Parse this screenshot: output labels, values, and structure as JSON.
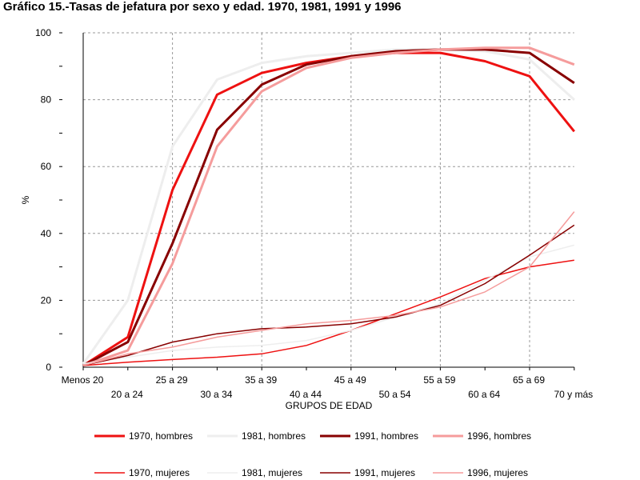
{
  "chart_data": {
    "type": "line",
    "title": "Gráfico 15.-Tasas de jefatura por sexo y edad. 1970, 1981, 1991 y 1996",
    "xlabel": "GRUPOS DE EDAD",
    "ylabel": "%",
    "ylim": [
      0,
      100
    ],
    "yticks": [
      0,
      20,
      40,
      60,
      80,
      100
    ],
    "grid": true,
    "legend_position": "bottom",
    "categories": [
      "Menos 20",
      "20 a 24",
      "25 a 29",
      "30 a 34",
      "35 a 39",
      "40 a 44",
      "45 a 49",
      "50 a 54",
      "55 a 59",
      "60 a 64",
      "65 a 69",
      "70 y más"
    ],
    "series": [
      {
        "name": "1970, hombres",
        "color": "#ee1111",
        "width": 3,
        "values": [
          0.5,
          9,
          53,
          81.5,
          88,
          91,
          93,
          94,
          94,
          91.5,
          87,
          70.5
        ]
      },
      {
        "name": "1981, hombres",
        "color": "#eeeeee",
        "width": 3,
        "values": [
          1,
          20,
          66,
          86,
          91,
          93,
          94,
          95,
          95,
          94.5,
          92,
          80
        ]
      },
      {
        "name": "1991, hombres",
        "color": "#880000",
        "width": 3,
        "values": [
          0.5,
          7.5,
          37,
          71,
          84.5,
          90.5,
          93,
          94.5,
          95,
          95,
          94,
          85
        ]
      },
      {
        "name": "1996, hombres",
        "color": "#f59c9c",
        "width": 3,
        "values": [
          0.5,
          5,
          31,
          66,
          82.5,
          89.5,
          92.5,
          94,
          95,
          95.5,
          95.5,
          90.5
        ]
      },
      {
        "name": "1970, mujeres",
        "color": "#ee1111",
        "width": 1.5,
        "values": [
          0.5,
          1.5,
          2.3,
          3,
          4,
          6.5,
          11,
          16,
          21,
          26.5,
          30,
          32
        ]
      },
      {
        "name": "1981, mujeres",
        "color": "#eeeeee",
        "width": 1.5,
        "values": [
          1,
          3,
          5,
          6,
          6.5,
          8,
          11,
          15,
          19,
          26,
          33,
          36.5
        ]
      },
      {
        "name": "1991, mujeres",
        "color": "#880000",
        "width": 1.5,
        "values": [
          0.5,
          3.5,
          7.5,
          10,
          11.5,
          12,
          13,
          15,
          18.5,
          25,
          33.5,
          42.5
        ]
      },
      {
        "name": "1996, mujeres",
        "color": "#f59c9c",
        "width": 1.5,
        "values": [
          0.5,
          4,
          6,
          9,
          11,
          13,
          14,
          15.5,
          18,
          22.5,
          30,
          46.5
        ]
      }
    ]
  }
}
